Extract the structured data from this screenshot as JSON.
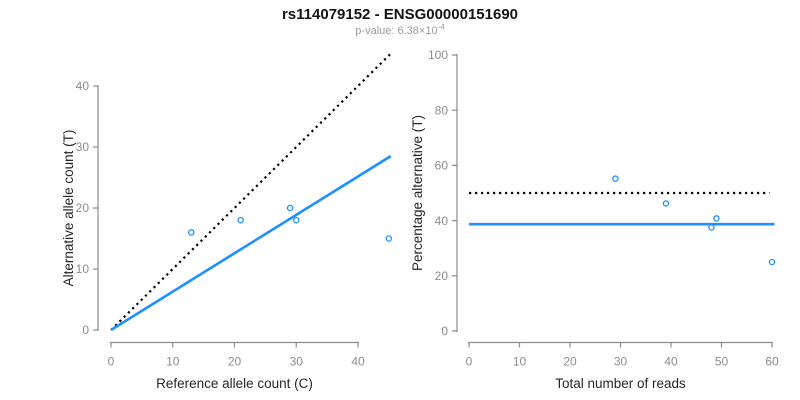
{
  "header": {
    "title": "rs114079152 - ENSG00000151690",
    "subtitle_prefix": "p-value: 6.38×10",
    "subtitle_exponent": "-4"
  },
  "colors": {
    "accent_blue": "#1E90FF",
    "dotted_black": "#000000",
    "axis_gray": "#8C8C8C",
    "tick_label_gray": "#8C8C8C",
    "axis_title_dark": "#262626",
    "title_black": "#141414",
    "subtitle_gray": "#9A9A9A"
  },
  "chart_data": [
    {
      "type": "scatter",
      "title": "",
      "xlabel": "Reference allele count (C)",
      "ylabel": "Alternative allele count (T)",
      "xticks": [
        0,
        10,
        20,
        30,
        40
      ],
      "yticks": [
        0,
        10,
        20,
        30,
        40
      ],
      "xlim": [
        0,
        45
      ],
      "ylim": [
        0,
        45
      ],
      "grid": false,
      "legend": false,
      "points": [
        [
          13,
          16
        ],
        [
          21,
          18
        ],
        [
          29,
          20
        ],
        [
          30,
          18
        ],
        [
          45,
          15
        ]
      ],
      "lines": [
        {
          "name": "identity-line",
          "style": "dotted",
          "color": "#000000",
          "x1": 0,
          "y1": 0,
          "x2": 45.2,
          "y2": 45.2
        },
        {
          "name": "fit-line",
          "style": "solid",
          "color": "#1E90FF",
          "x1": 0,
          "y1": 0,
          "x2": 45.3,
          "y2": 28.5
        }
      ]
    },
    {
      "type": "scatter",
      "title": "",
      "xlabel": "Total number of reads",
      "ylabel": "Percentage alternative (T)",
      "xticks": [
        0,
        10,
        20,
        30,
        40,
        50,
        60
      ],
      "yticks": [
        0,
        20,
        40,
        60,
        80,
        100
      ],
      "xlim": [
        0,
        61
      ],
      "ylim": [
        0,
        100
      ],
      "grid": false,
      "legend": false,
      "points": [
        [
          29,
          55.2
        ],
        [
          39,
          46.2
        ],
        [
          48,
          37.5
        ],
        [
          49,
          40.8
        ],
        [
          60,
          25
        ]
      ],
      "lines": [
        {
          "name": "fifty-percent-line",
          "style": "dotted",
          "color": "#000000",
          "x1": 0,
          "y1": 50,
          "x2": 59.5,
          "y2": 50
        },
        {
          "name": "mean-percentage-line",
          "style": "solid",
          "color": "#1E90FF",
          "x1": 0,
          "y1": 38.7,
          "x2": 60.5,
          "y2": 38.7
        }
      ]
    }
  ]
}
